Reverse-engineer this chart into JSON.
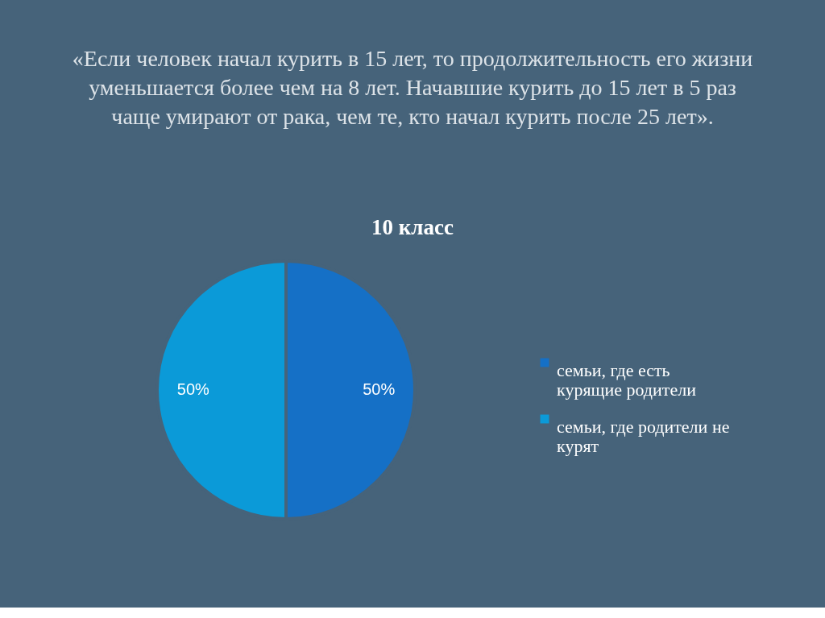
{
  "chart_data": {
    "type": "pie",
    "title": "«Если человек начал курить в 15 лет, то продолжительность его жизни уменьшается более чем на 8 лет. Начавшие курить до 15 лет в 5 раз чаще умирают от рака, чем те, кто начал курить после 25 лет».",
    "subtitle": "10 класс",
    "categories": [
      "семьи, где есть курящие родители",
      "семьи, где родители не курят"
    ],
    "values": [
      50,
      50
    ],
    "colors": [
      "#1570c6",
      "#0b9ad8"
    ],
    "value_labels": [
      "50%",
      "50%"
    ],
    "legend": "right"
  }
}
